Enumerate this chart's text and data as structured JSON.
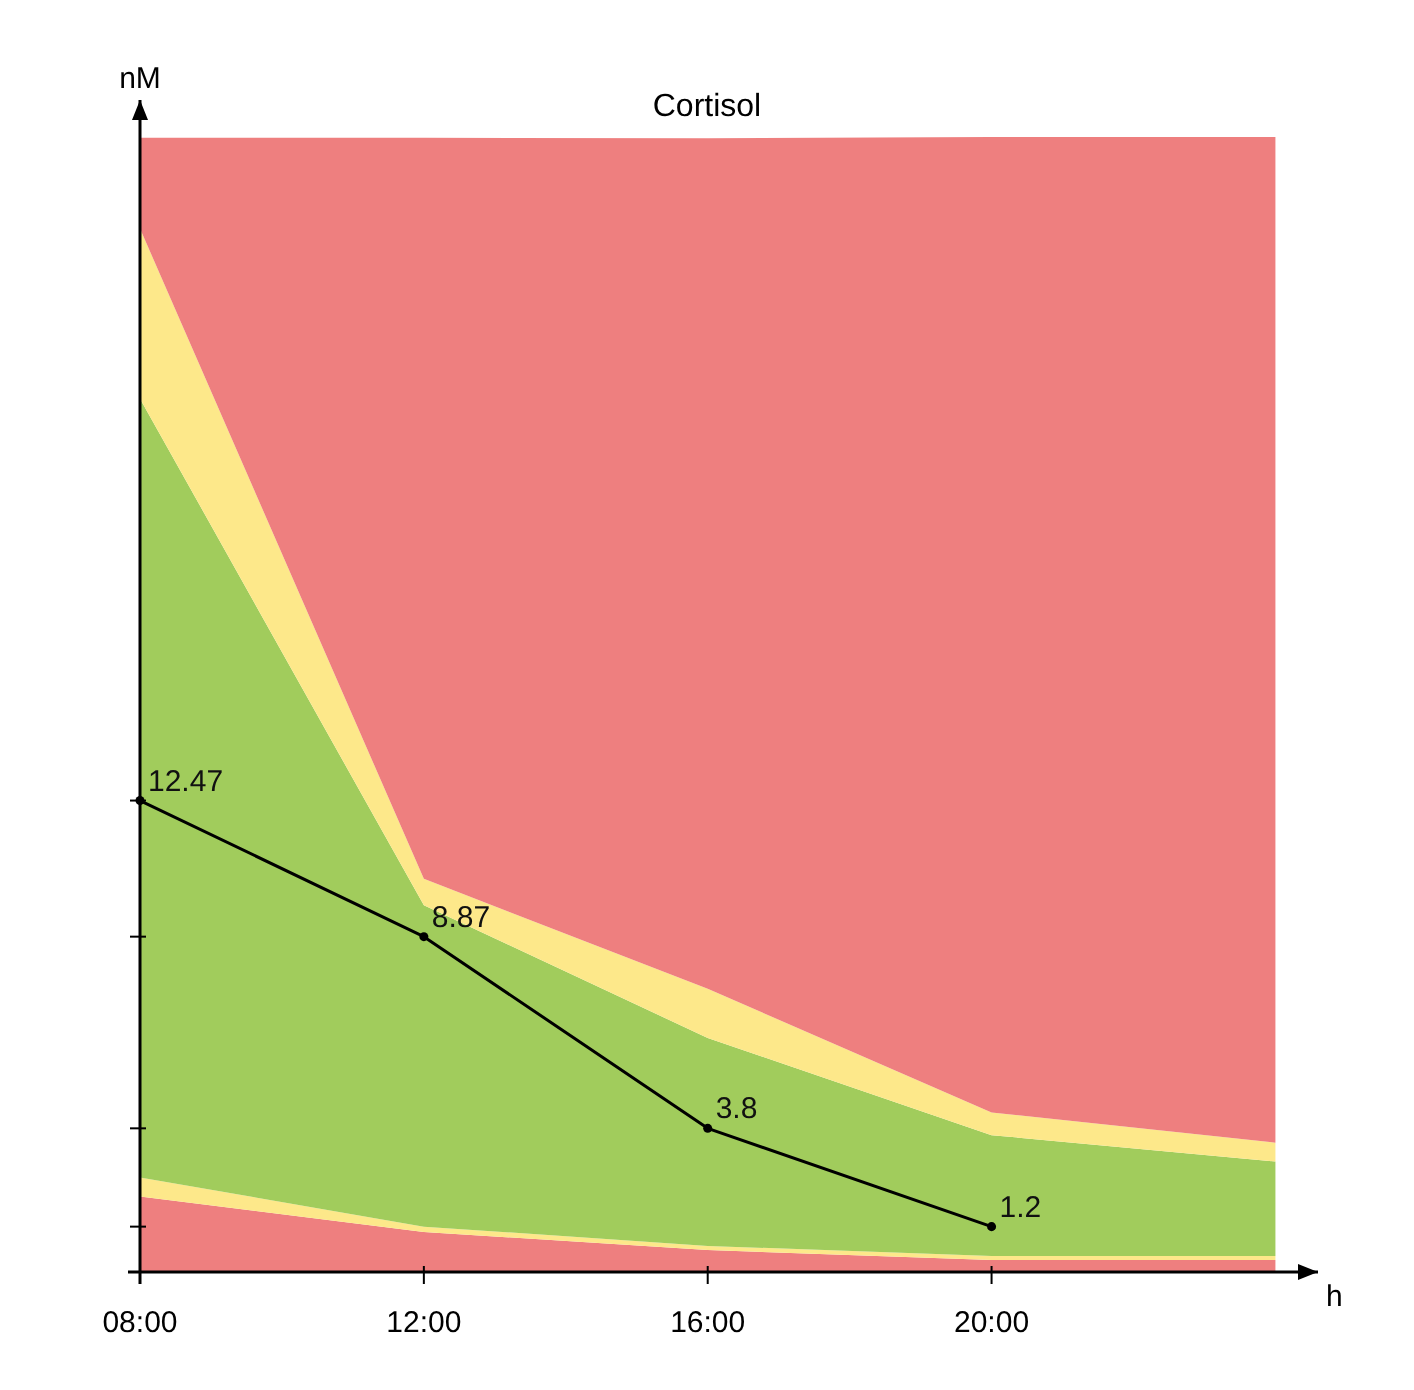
{
  "chart_data": {
    "type": "area",
    "title": "Cortisol",
    "xlabel": "h",
    "ylabel": "nM",
    "stacked": true,
    "grid": false,
    "xlim": [
      8,
      24.6
    ],
    "xticks": [
      {
        "value": 8,
        "label": "08:00"
      },
      {
        "value": 12,
        "label": "12:00"
      },
      {
        "value": 16,
        "label": "16:00"
      },
      {
        "value": 20,
        "label": "20:00"
      }
    ],
    "ylim": [
      0,
      31
    ],
    "yticks": [
      {
        "value": 1.2,
        "label": null
      },
      {
        "value": 3.8,
        "label": null
      },
      {
        "value": 8.87,
        "label": null
      },
      {
        "value": 12.47,
        "label": null
      }
    ],
    "series": [
      {
        "color": "#ee7f7f",
        "x": [
          8,
          12,
          16,
          20,
          24
        ],
        "values": [
          2.0,
          1.06,
          0.58,
          0.32,
          0.32
        ]
      },
      {
        "color": "#fde88a",
        "x": [
          8,
          12,
          16,
          20,
          24
        ],
        "values": [
          0.5,
          0.14,
          0.11,
          0.1,
          0.1
        ]
      },
      {
        "color": "#a1cc5c",
        "x": [
          8,
          12,
          16,
          20,
          24
        ],
        "values": [
          20.6,
          8.5,
          5.5,
          3.2,
          2.5
        ]
      },
      {
        "color": "#fde88a",
        "x": [
          8,
          12,
          16,
          20,
          24
        ],
        "values": [
          4.5,
          0.7,
          1.3,
          0.6,
          0.5
        ]
      },
      {
        "color": "#ee7f7f",
        "x": [
          8,
          12,
          16,
          20,
          24
        ],
        "values": [
          2.4,
          19.6,
          22.5,
          25.8,
          26.6
        ]
      },
      {
        "type": "line",
        "color": "#000000",
        "marker": "circle",
        "line_style": "solid",
        "x": [
          8,
          12,
          16,
          20
        ],
        "values": [
          12.47,
          8.87,
          3.8,
          1.2
        ],
        "value_labels": [
          "12.47",
          "8.87",
          "3.8",
          "1.2"
        ]
      }
    ]
  }
}
